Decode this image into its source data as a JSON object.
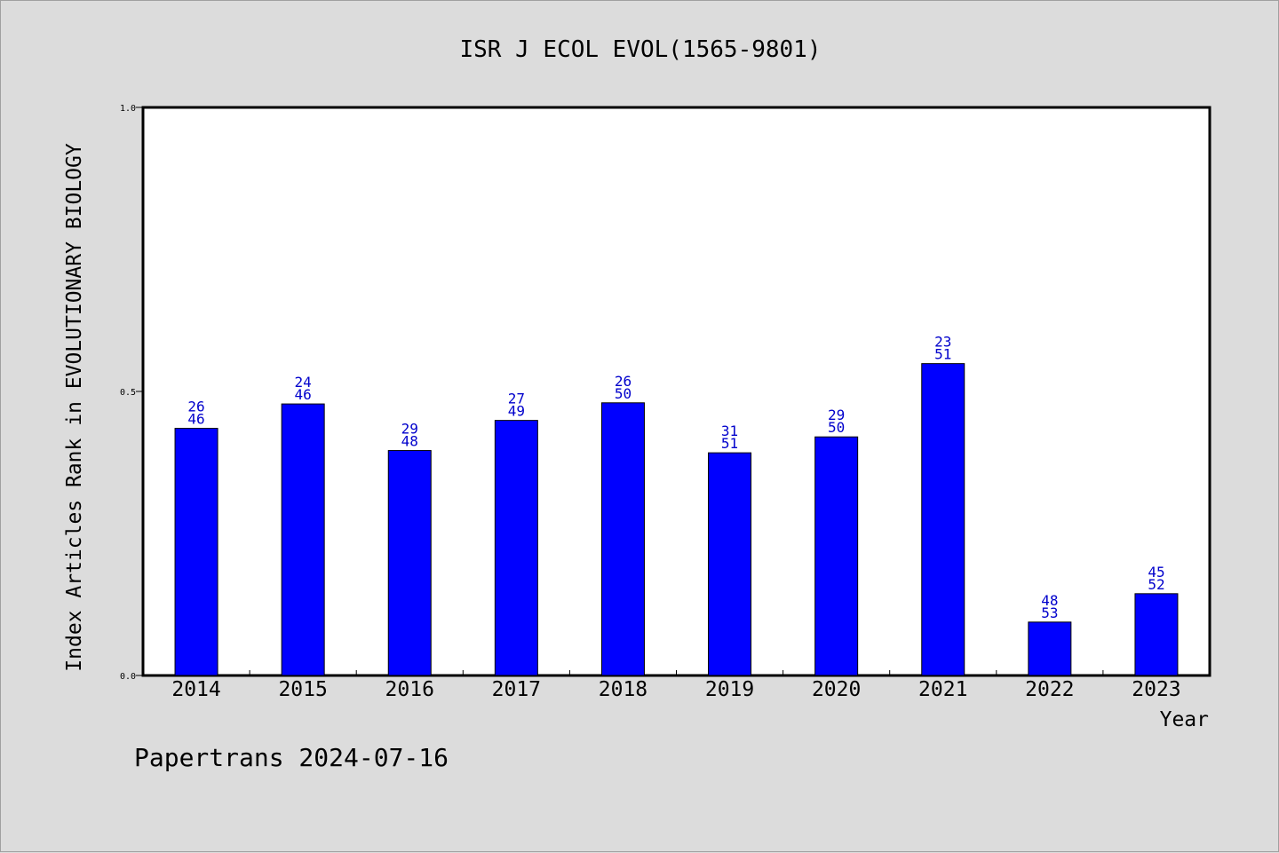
{
  "chart_data": {
    "type": "bar",
    "title": "ISR J ECOL EVOL(1565-9801)",
    "xlabel": "Year",
    "ylabel": "Index Articles Rank in EVOLUTIONARY BIOLOGY",
    "ylim": [
      0.0,
      1.0
    ],
    "y_ticks": [
      "0.0",
      "0.5",
      "1.0"
    ],
    "grid": false,
    "categories": [
      "2014",
      "2015",
      "2016",
      "2017",
      "2018",
      "2019",
      "2020",
      "2021",
      "2022",
      "2023"
    ],
    "series": [
      {
        "values": [
          0.435,
          0.478,
          0.396,
          0.449,
          0.48,
          0.392,
          0.42,
          0.549,
          0.094,
          0.144
        ],
        "rank": [
          "26",
          "24",
          "29",
          "27",
          "26",
          "31",
          "29",
          "23",
          "48",
          "45"
        ],
        "total": [
          "46",
          "46",
          "48",
          "49",
          "50",
          "51",
          "50",
          "51",
          "53",
          "52"
        ]
      }
    ],
    "colors": {
      "bar": "#0000ff",
      "bar_label": "#0000cc",
      "background": "#dcdcdc",
      "plot_background": "#ffffff"
    }
  },
  "footer": "Papertrans 2024-07-16"
}
